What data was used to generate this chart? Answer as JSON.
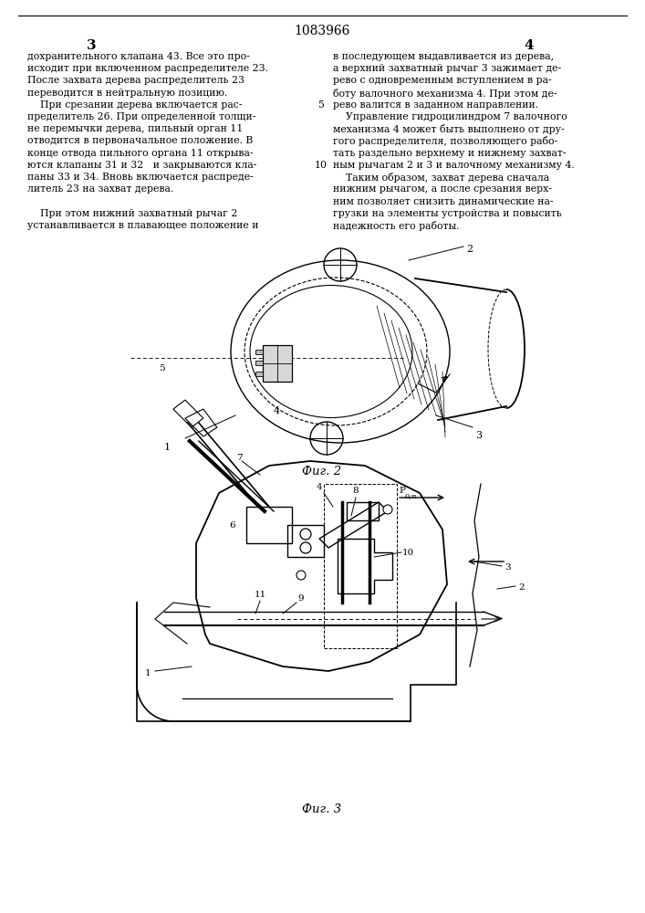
{
  "page_number": "1083966",
  "col_left": "3",
  "col_right": "4",
  "text_left": [
    "дохранительного клапана 43. Все это про-",
    "исходит при включенном распределителе 23.",
    "После захвата дерева распределитель 23",
    "переводится в нейтральную позицию.",
    "    При срезании дерева включается рас-",
    "пределитель 26. При определенной толщи-",
    "не перемычки дерева, пильный орган 11",
    "отводится в первоначальное положение. В",
    "конце отвода пильного органа 11 открыва-",
    "ются клапаны 31 и 32   и закрываются кла-",
    "паны 33 и 34. Вновь включается распреде-",
    "литель 23 на захват дерева.",
    "",
    "    При этом нижний захватный рычаг 2",
    "устанавливается в плавающее положение и"
  ],
  "text_right": [
    "в последующем выдавливается из дерева,",
    "а верхний захватный рычаг 3 зажимает де-",
    "рево с одновременным вступлением в ра-",
    "боту валочного механизма 4. При этом де-",
    "рево валится в заданном направлении.",
    "    Управление гидроцилиндром 7 валочного",
    "механизма 4 может быть выполнено от дру-",
    "гого распределителя, позволяющего рабо-",
    "тать раздельно верхнему и нижнему захват-",
    "ным рычагам 2 и 3 и валочному механизму 4.",
    "    Таким образом, захват дерева сначала",
    "нижним рычагом, а после срезания верх-",
    "ним позволяет снизить динамические на-",
    "грузки на элементы устройства и повысить",
    "надежность его работы."
  ],
  "line_num_5": "5",
  "line_num_10": "10",
  "fig2_caption": "Фиг. 2",
  "fig3_caption": "Фиг. 3",
  "background_color": "#ffffff",
  "text_color": "#000000",
  "font_size_body": 7.8,
  "font_size_caption": 9.5,
  "font_size_header": 10,
  "font_size_col": 11
}
